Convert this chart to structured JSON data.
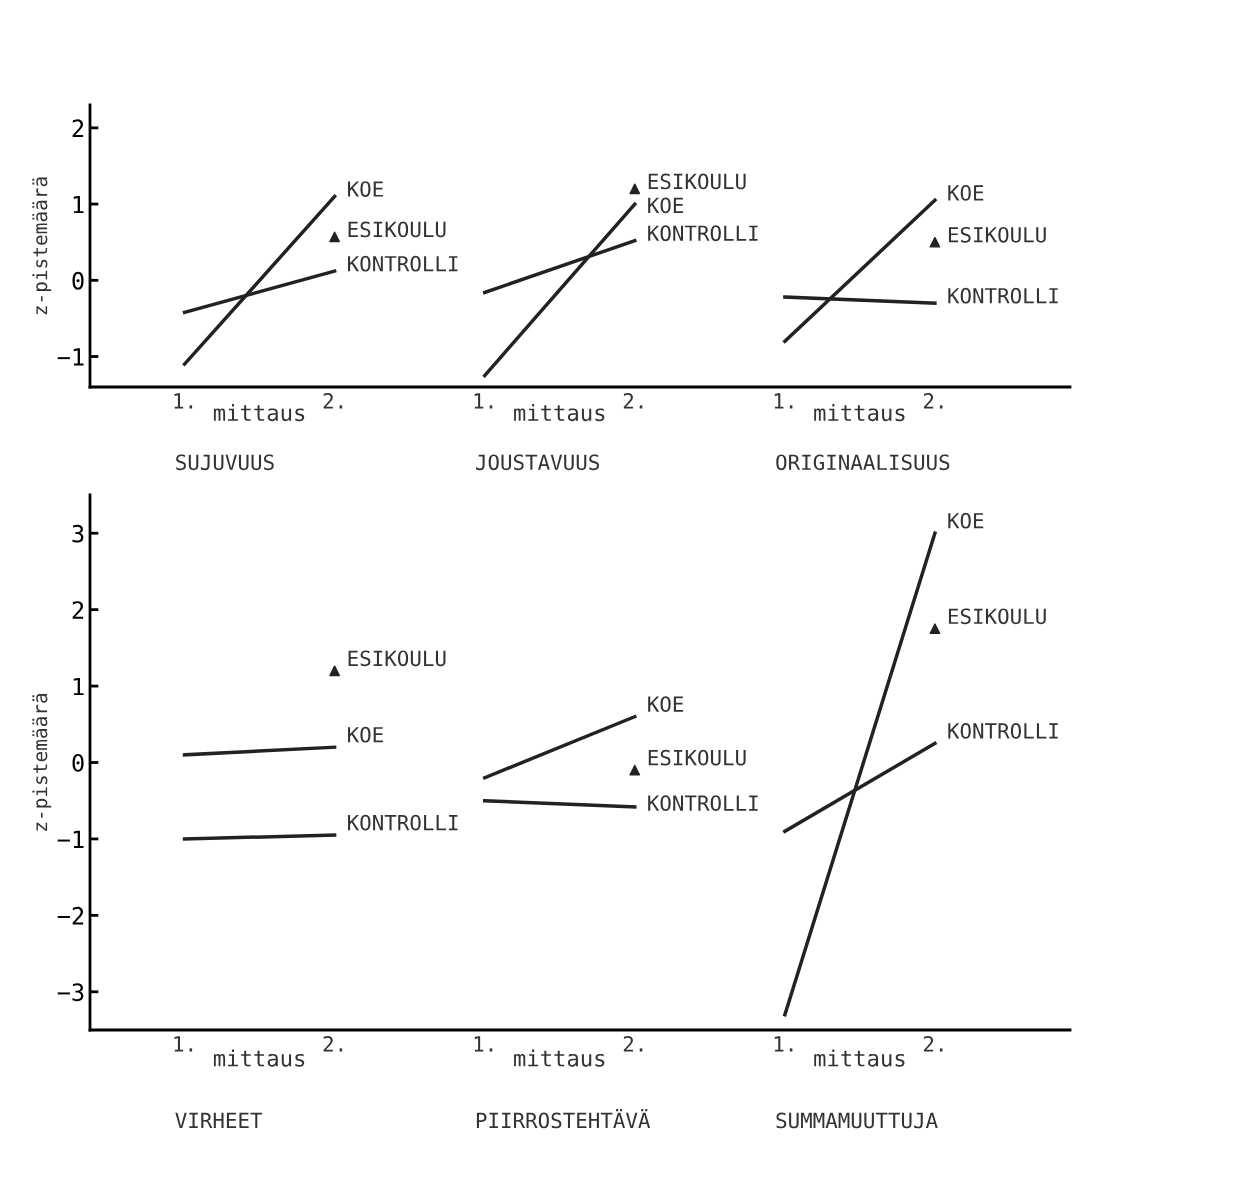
{
  "chart_data": [
    {
      "type": "line",
      "xlabel": "mittaus",
      "ylabel": "z-pistemäärä",
      "categories": [
        "1.",
        "2.",
        "1.",
        "2.",
        "1.",
        "2."
      ],
      "ylim": [
        -1.4,
        2.3
      ],
      "yticks": [
        {
          "value": -1,
          "label": "−1"
        },
        0,
        1,
        2
      ],
      "grid": false,
      "legend": false,
      "annotations": [
        "SUJUVUUS",
        "JOUSTAVUUS",
        "ORIGINAALISUUS"
      ],
      "series": [
        {
          "name": "KOE",
          "color": "#222222",
          "values": [
            -1.1,
            1.1,
            null,
            null,
            null,
            null
          ]
        },
        {
          "name": "ESIKOULU",
          "type": "scatter",
          "marker": "triangle",
          "color": "#222222",
          "values": [
            null,
            0.57,
            null,
            null,
            null,
            null
          ]
        },
        {
          "name": "KONTROLLI",
          "color": "#222222",
          "values": [
            -0.42,
            0.12,
            null,
            null,
            null,
            null
          ]
        },
        {
          "name": "ESIKOULU",
          "type": "scatter",
          "marker": "triangle",
          "color": "#222222",
          "values": [
            null,
            null,
            null,
            1.2,
            null,
            null
          ]
        },
        {
          "name": "KOE",
          "color": "#222222",
          "values": [
            null,
            null,
            -1.25,
            1.0,
            null,
            null
          ]
        },
        {
          "name": "KONTROLLI",
          "color": "#222222",
          "values": [
            null,
            null,
            -0.16,
            0.52,
            null,
            null
          ]
        },
        {
          "name": "KOE",
          "color": "#222222",
          "values": [
            null,
            null,
            null,
            null,
            -0.8,
            1.05
          ]
        },
        {
          "name": "ESIKOULU",
          "type": "scatter",
          "marker": "triangle",
          "color": "#222222",
          "values": [
            null,
            null,
            null,
            null,
            null,
            0.5
          ]
        },
        {
          "name": "KONTROLLI",
          "color": "#222222",
          "values": [
            null,
            null,
            null,
            null,
            -0.22,
            -0.3
          ]
        }
      ]
    },
    {
      "type": "line",
      "xlabel": "mittaus",
      "ylabel": "z-pistemäärä",
      "categories": [
        "1.",
        "2.",
        "1.",
        "2.",
        "1.",
        "2."
      ],
      "ylim": [
        -3.5,
        3.5
      ],
      "yticks": [
        {
          "value": -3,
          "label": "−3"
        },
        {
          "value": -2,
          "label": "−2"
        },
        {
          "value": -1,
          "label": "−1"
        },
        0,
        1,
        2,
        3
      ],
      "grid": false,
      "legend": false,
      "annotations": [
        "VIRHEET",
        "PIIRROSTEHTÄVÄ",
        "SUMMAMUUTTUJA"
      ],
      "series": [
        {
          "name": "ESIKOULU",
          "type": "scatter",
          "marker": "triangle",
          "color": "#222222",
          "values": [
            null,
            1.2,
            null,
            null,
            null,
            null
          ]
        },
        {
          "name": "KOE",
          "color": "#222222",
          "values": [
            0.1,
            0.2,
            null,
            null,
            null,
            null
          ]
        },
        {
          "name": "KONTROLLI",
          "color": "#222222",
          "values": [
            -1.0,
            -0.95,
            null,
            null,
            null,
            null
          ]
        },
        {
          "name": "KOE",
          "color": "#222222",
          "values": [
            null,
            null,
            -0.2,
            0.6,
            null,
            null
          ]
        },
        {
          "name": "ESIKOULU",
          "type": "scatter",
          "marker": "triangle",
          "color": "#222222",
          "values": [
            null,
            null,
            null,
            -0.1,
            null,
            null
          ]
        },
        {
          "name": "KONTROLLI",
          "color": "#222222",
          "values": [
            null,
            null,
            -0.5,
            -0.58,
            null,
            null
          ]
        },
        {
          "name": "KOE",
          "color": "#222222",
          "values": [
            null,
            null,
            null,
            null,
            -3.3,
            3.0
          ]
        },
        {
          "name": "ESIKOULU",
          "type": "scatter",
          "marker": "triangle",
          "color": "#222222",
          "values": [
            null,
            null,
            null,
            null,
            null,
            1.75
          ]
        },
        {
          "name": "KONTROLLI",
          "color": "#222222",
          "values": [
            null,
            null,
            null,
            null,
            -0.9,
            0.25
          ]
        }
      ]
    }
  ]
}
